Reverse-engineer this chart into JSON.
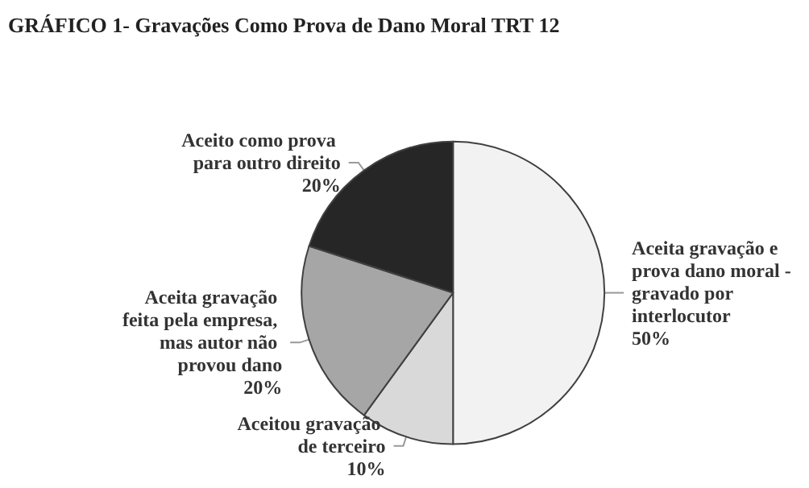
{
  "chart_data": {
    "type": "pie",
    "title": "GRÁFICO 1- Gravações Como Prova de Dano Moral TRT 12",
    "categories": [
      "Aceita gravação e prova dano moral - gravado por interlocutor",
      "Aceitou gravação de terceiro",
      "Aceita gravação feita pela empresa, mas autor não provou dano",
      "Aceito como prova para outro direito"
    ],
    "values": [
      50,
      10,
      20,
      20
    ],
    "value_labels": [
      "50%",
      "10%",
      "20%",
      "20%"
    ],
    "colors": [
      "#f2f2f2",
      "#d9d9d9",
      "#a6a6a6",
      "#262626"
    ]
  }
}
